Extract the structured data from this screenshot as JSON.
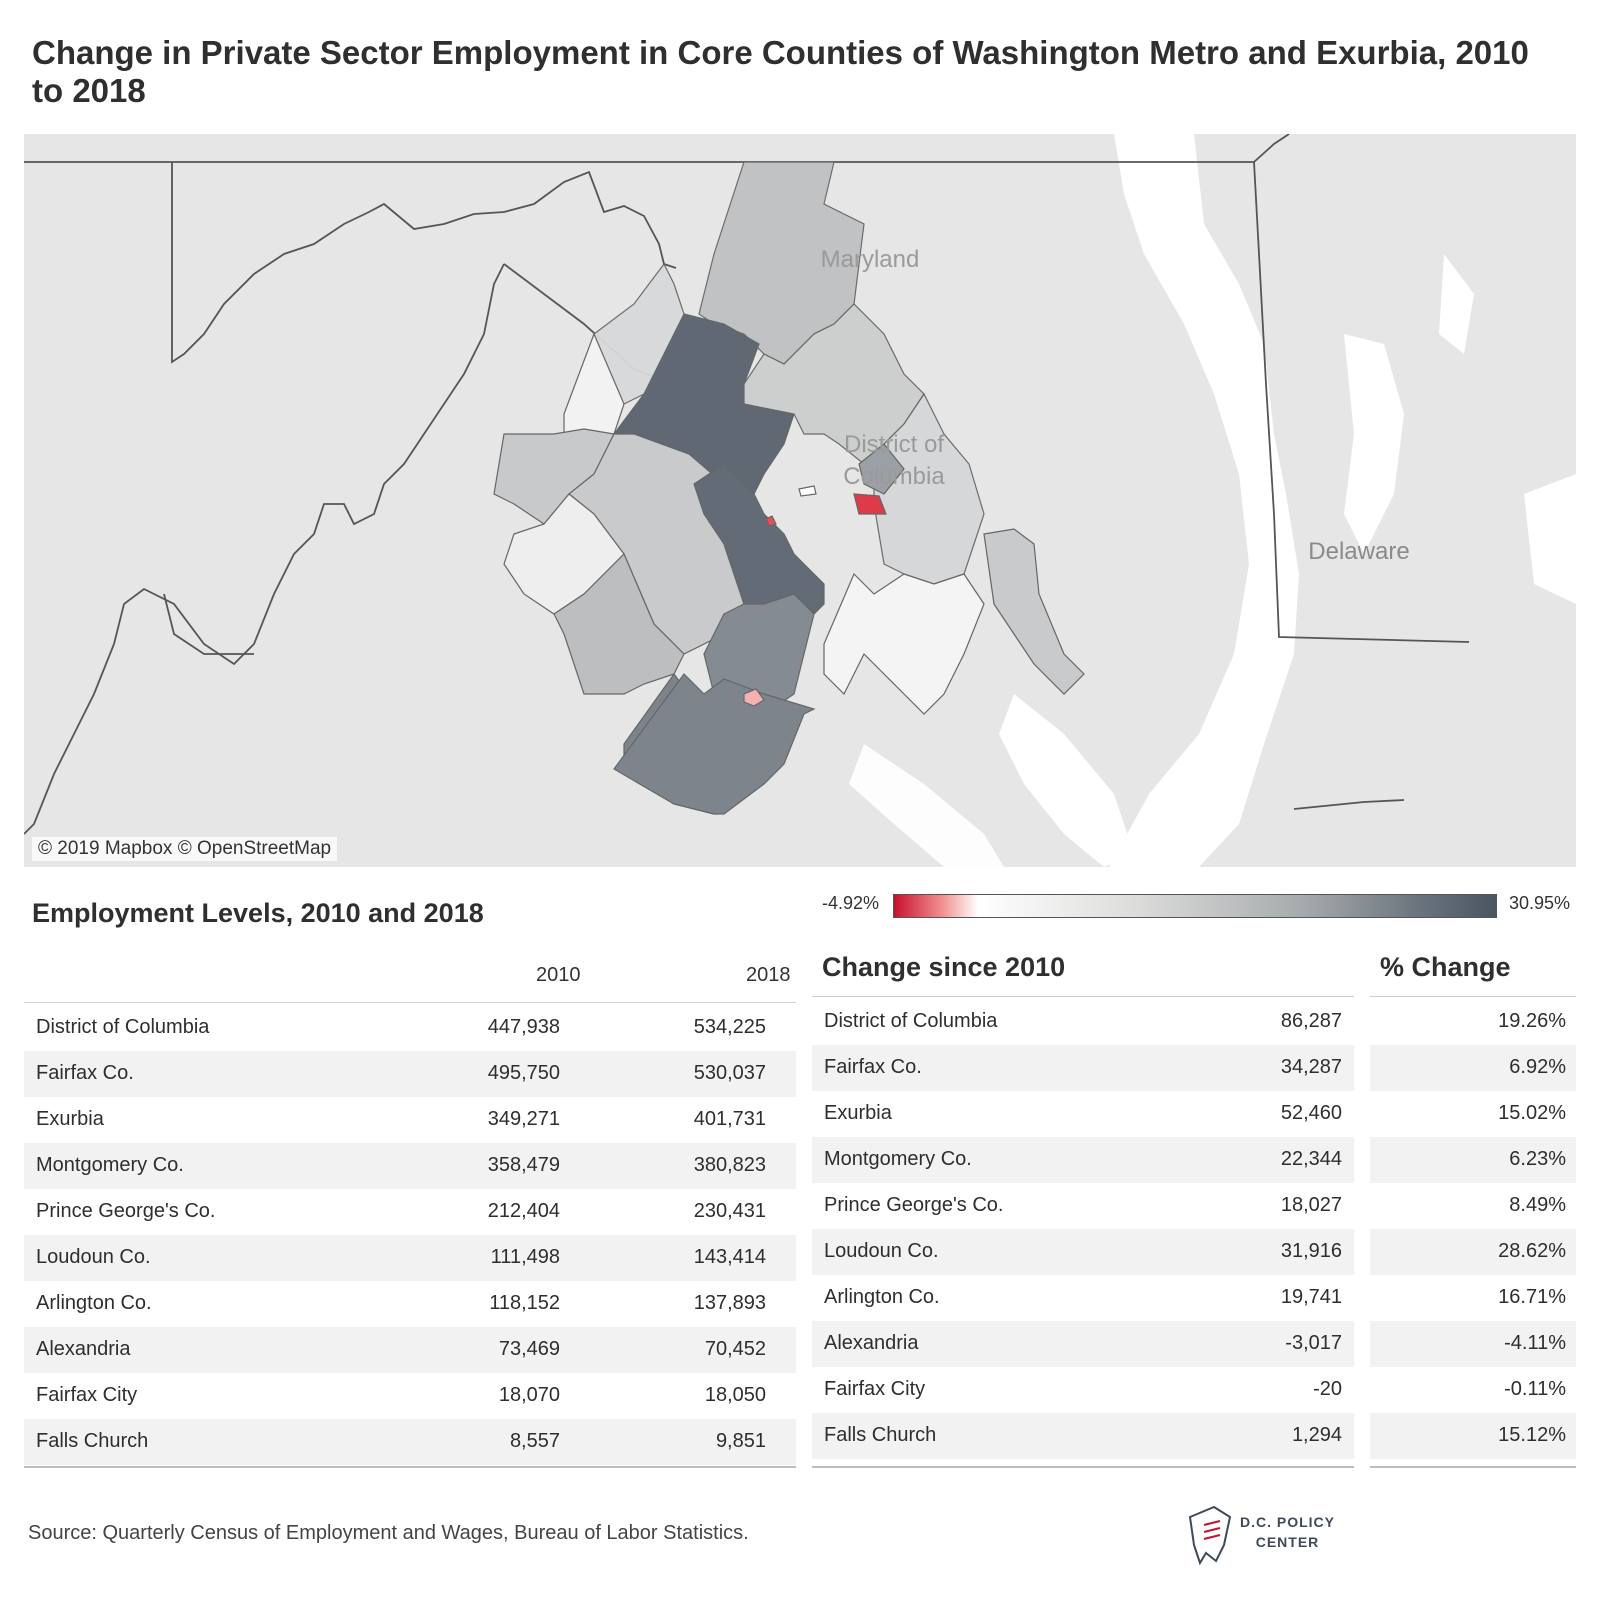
{
  "title": "Change in Private Sector Employment in Core Counties of Washington Metro and Exurbia, 2010 to 2018",
  "map": {
    "labels": {
      "maryland": "Maryland",
      "district": "District of Columbia",
      "district_line1": "District of",
      "district_line2": "Columbia",
      "delaware": "Delaware"
    },
    "attribution": "© 2019 Mapbox © OpenStreetMap",
    "colors": {
      "background": "#e6e6e6",
      "water": "#ffffff",
      "negative": "#c8102e",
      "neutral": "#ffffff",
      "positive_max": "#4a5562"
    }
  },
  "legend": {
    "min": "-4.92%",
    "max": "30.95%"
  },
  "levels_table": {
    "title": "Employment Levels, 2010 and 2018",
    "columns": [
      "2010",
      "2018"
    ],
    "rows": [
      {
        "name": "District of Columbia",
        "y2010": "447,938",
        "y2018": "534,225"
      },
      {
        "name": "Fairfax Co.",
        "y2010": "495,750",
        "y2018": "530,037"
      },
      {
        "name": "Exurbia",
        "y2010": "349,271",
        "y2018": "401,731"
      },
      {
        "name": "Montgomery Co.",
        "y2010": "358,479",
        "y2018": "380,823"
      },
      {
        "name": "Prince George's Co.",
        "y2010": "212,404",
        "y2018": "230,431"
      },
      {
        "name": "Loudoun Co.",
        "y2010": "111,498",
        "y2018": "143,414"
      },
      {
        "name": "Arlington Co.",
        "y2010": "118,152",
        "y2018": "137,893"
      },
      {
        "name": "Alexandria",
        "y2010": "73,469",
        "y2018": "70,452"
      },
      {
        "name": "Fairfax City",
        "y2010": "18,070",
        "y2018": "18,050"
      },
      {
        "name": "Falls Church",
        "y2010": "8,557",
        "y2018": "9,851"
      }
    ]
  },
  "change_table": {
    "title": "Change since 2010",
    "pct_title": "% Change",
    "rows": [
      {
        "name": "District of Columbia",
        "change": "86,287",
        "pct": "19.26%"
      },
      {
        "name": "Fairfax Co.",
        "change": "34,287",
        "pct": "6.92%"
      },
      {
        "name": "Exurbia",
        "change": "52,460",
        "pct": "15.02%"
      },
      {
        "name": "Montgomery Co.",
        "change": "22,344",
        "pct": "6.23%"
      },
      {
        "name": "Prince George's Co.",
        "change": "18,027",
        "pct": "8.49%"
      },
      {
        "name": "Loudoun Co.",
        "change": "31,916",
        "pct": "28.62%"
      },
      {
        "name": "Arlington Co.",
        "change": "19,741",
        "pct": "16.71%"
      },
      {
        "name": "Alexandria",
        "change": "-3,017",
        "pct": "-4.11%"
      },
      {
        "name": "Fairfax City",
        "change": "-20",
        "pct": "-0.11%"
      },
      {
        "name": "Falls Church",
        "change": "1,294",
        "pct": "15.12%"
      }
    ]
  },
  "source": "Source: Quarterly Census of Employment and Wages, Bureau of Labor Statistics.",
  "logo": {
    "line1": "D.C. POLICY",
    "line2": "CENTER",
    "icon": "dc-policy-center-logo-icon"
  }
}
